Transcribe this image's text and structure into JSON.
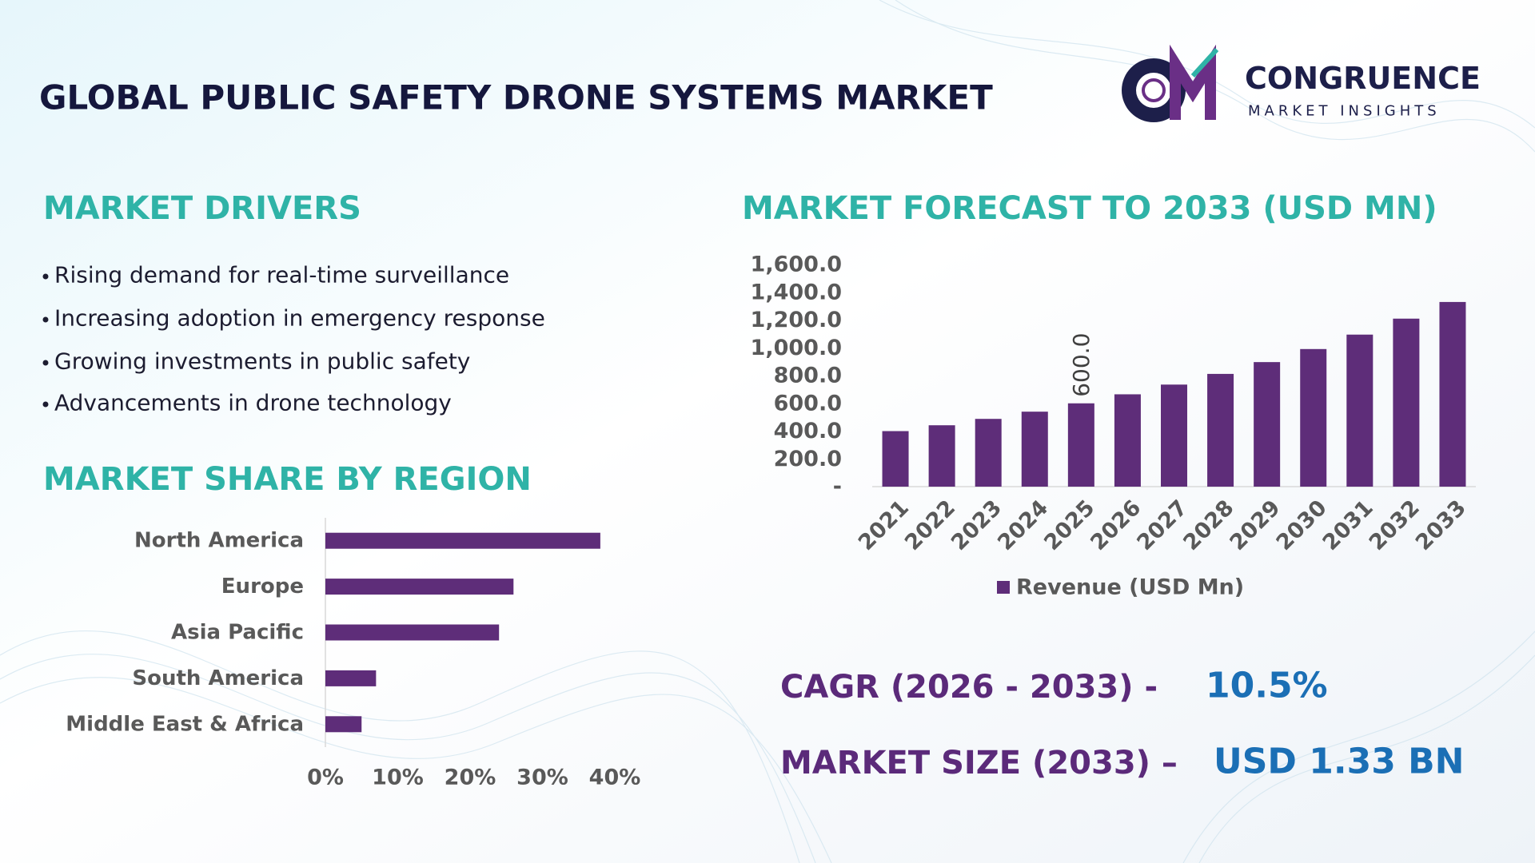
{
  "header": {
    "title": "GLOBAL PUBLIC SAFETY DRONE SYSTEMS MARKET",
    "logo_name": "CONGRUENCE",
    "logo_tagline": "MARKET INSIGHTS"
  },
  "drivers": {
    "title": "MARKET DRIVERS",
    "items": [
      "Rising demand for real-time surveillance",
      "Increasing adoption in emergency response",
      "Growing investments in public safety",
      "Advancements in drone technology"
    ]
  },
  "summary": {
    "cagr_label": "CAGR (2026 - 2033) -",
    "cagr_value": "10.5%",
    "size_label": "MARKET SIZE (2033) –",
    "size_value": "USD 1.33 BN"
  },
  "chart_data": [
    {
      "type": "bar",
      "orientation": "horizontal",
      "title": "MARKET SHARE BY REGION",
      "categories": [
        "North America",
        "Europe",
        "Asia Pacific",
        "South America",
        "Middle East & Africa"
      ],
      "values": [
        38,
        26,
        24,
        7,
        5
      ],
      "color": "#5e2d79",
      "xlim": [
        0,
        40
      ],
      "xticks": [
        {
          "value": 0,
          "label": "0%"
        },
        {
          "value": 10,
          "label": "10%"
        },
        {
          "value": 20,
          "label": "20%"
        },
        {
          "value": 30,
          "label": "30%"
        },
        {
          "value": 40,
          "label": "40%"
        }
      ],
      "grid": false
    },
    {
      "type": "bar",
      "orientation": "vertical",
      "title": "MARKET FORECAST TO 2033 (USD MN)",
      "categories": [
        "2021",
        "2022",
        "2023",
        "2024",
        "2025",
        "2026",
        "2027",
        "2028",
        "2029",
        "2030",
        "2031",
        "2032",
        "2033"
      ],
      "series": [
        {
          "name": "Revenue (USD Mn)",
          "color": "#5e2d79",
          "values": [
            400,
            442,
            488,
            540,
            600,
            665,
            735,
            812,
            897,
            991,
            1095,
            1210,
            1330
          ],
          "value_labels": [
            null,
            null,
            null,
            null,
            "600.0",
            null,
            null,
            null,
            null,
            null,
            null,
            null,
            null
          ]
        }
      ],
      "ylim": [
        0,
        1600
      ],
      "yticks": [
        {
          "value": 0,
          "label": "-"
        },
        {
          "value": 200,
          "label": "200.0"
        },
        {
          "value": 400,
          "label": "400.0"
        },
        {
          "value": 600,
          "label": "600.0"
        },
        {
          "value": 800,
          "label": "800.0"
        },
        {
          "value": 1000,
          "label": "1,000.0"
        },
        {
          "value": 1200,
          "label": "1,200.0"
        },
        {
          "value": 1400,
          "label": "1,400.0"
        },
        {
          "value": 1600,
          "label": "1,600.0"
        }
      ],
      "grid": false,
      "legend": "bottom"
    }
  ]
}
